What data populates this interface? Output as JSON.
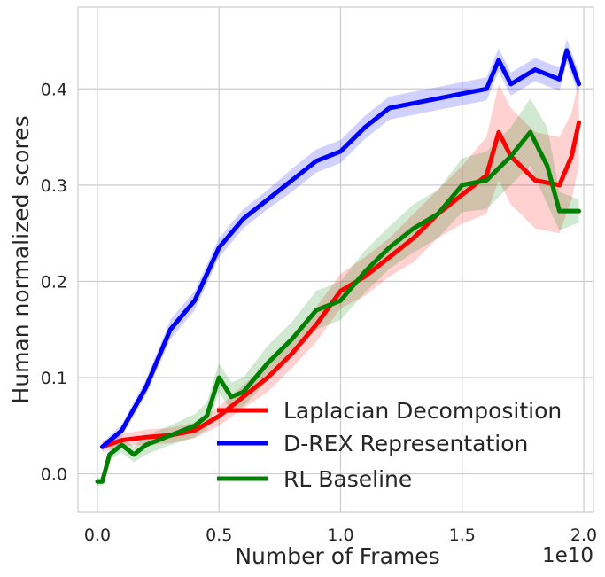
{
  "chart_data": {
    "type": "line",
    "xlabel": "Number of Frames",
    "ylabel": "Human normalized scores",
    "x_offset_label": "1e10",
    "xlim": [
      -0.08,
      2.04
    ],
    "ylim": [
      -0.04,
      0.485
    ],
    "xticks": [
      0.0,
      0.5,
      1.0,
      1.5,
      2.0
    ],
    "xtick_labels": [
      "0.0",
      "0.5",
      "1.0",
      "1.5",
      "2.0"
    ],
    "yticks": [
      0.0,
      0.1,
      0.2,
      0.3,
      0.4
    ],
    "ytick_labels": [
      "0.0",
      "0.1",
      "0.2",
      "0.3",
      "0.4"
    ],
    "grid": true,
    "legend_position": "bottom-right",
    "series": [
      {
        "name": "Laplacian Decomposition",
        "color": "#ff0000",
        "x": [
          0.02,
          0.1,
          0.2,
          0.3,
          0.4,
          0.5,
          0.6,
          0.7,
          0.8,
          0.9,
          1.0,
          1.1,
          1.2,
          1.3,
          1.4,
          1.5,
          1.6,
          1.65,
          1.7,
          1.8,
          1.9,
          1.95,
          1.98
        ],
        "y": [
          0.028,
          0.035,
          0.038,
          0.04,
          0.045,
          0.06,
          0.08,
          0.1,
          0.125,
          0.155,
          0.19,
          0.205,
          0.225,
          0.245,
          0.27,
          0.29,
          0.31,
          0.355,
          0.33,
          0.305,
          0.3,
          0.33,
          0.365
        ],
        "band": [
          0.006,
          0.006,
          0.008,
          0.008,
          0.008,
          0.01,
          0.012,
          0.015,
          0.015,
          0.018,
          0.018,
          0.02,
          0.02,
          0.025,
          0.025,
          0.03,
          0.04,
          0.05,
          0.05,
          0.05,
          0.05,
          0.045,
          0.045
        ]
      },
      {
        "name": "D-REX Representation",
        "color": "#0000ff",
        "x": [
          0.02,
          0.1,
          0.2,
          0.3,
          0.4,
          0.5,
          0.6,
          0.7,
          0.8,
          0.9,
          1.0,
          1.1,
          1.2,
          1.3,
          1.4,
          1.5,
          1.6,
          1.65,
          1.7,
          1.8,
          1.9,
          1.93,
          1.98
        ],
        "y": [
          0.028,
          0.045,
          0.09,
          0.15,
          0.18,
          0.235,
          0.265,
          0.285,
          0.305,
          0.325,
          0.335,
          0.36,
          0.38,
          0.385,
          0.39,
          0.395,
          0.4,
          0.43,
          0.405,
          0.42,
          0.41,
          0.44,
          0.405
        ],
        "band": [
          0.004,
          0.006,
          0.008,
          0.01,
          0.01,
          0.01,
          0.01,
          0.01,
          0.012,
          0.012,
          0.012,
          0.012,
          0.012,
          0.012,
          0.012,
          0.012,
          0.012,
          0.012,
          0.012,
          0.012,
          0.012,
          0.012,
          0.012
        ]
      },
      {
        "name": "RL Baseline",
        "color": "#008000",
        "x": [
          0.0,
          0.02,
          0.05,
          0.1,
          0.15,
          0.2,
          0.3,
          0.4,
          0.45,
          0.5,
          0.55,
          0.6,
          0.7,
          0.8,
          0.9,
          1.0,
          1.1,
          1.2,
          1.3,
          1.4,
          1.5,
          1.6,
          1.7,
          1.78,
          1.85,
          1.9,
          1.98
        ],
        "y": [
          -0.008,
          -0.008,
          0.02,
          0.03,
          0.02,
          0.03,
          0.04,
          0.05,
          0.06,
          0.1,
          0.08,
          0.085,
          0.115,
          0.14,
          0.17,
          0.18,
          0.21,
          0.235,
          0.255,
          0.27,
          0.3,
          0.305,
          0.33,
          0.355,
          0.32,
          0.273,
          0.273
        ],
        "band": [
          0.004,
          0.004,
          0.006,
          0.008,
          0.008,
          0.01,
          0.01,
          0.012,
          0.014,
          0.015,
          0.015,
          0.015,
          0.018,
          0.018,
          0.02,
          0.02,
          0.022,
          0.022,
          0.025,
          0.025,
          0.028,
          0.03,
          0.03,
          0.035,
          0.04,
          0.02,
          0.012
        ]
      }
    ]
  }
}
